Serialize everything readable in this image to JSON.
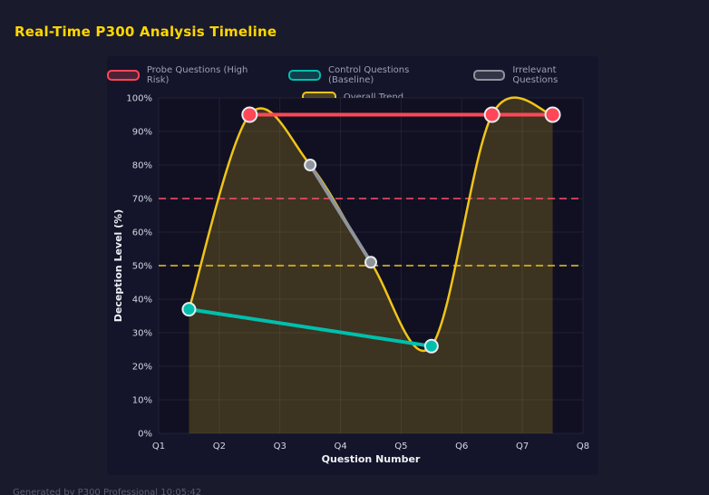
{
  "page": {
    "title": "Real-Time P300 Analysis Timeline",
    "footer": "Generated by P300 Professional  10:05:42"
  },
  "colors": {
    "background": "#1a1a2d",
    "card": "#14142b",
    "plot": "#101022",
    "title": "#ffd700",
    "grid": "rgba(255,255,255,0.07)",
    "axis_text": "#d5d8e0",
    "axis_label": "#f0f0f5",
    "marker_stroke": "#e8ecf1",
    "area_fill": "rgba(240,196,25,0.20)"
  },
  "chart_data": {
    "type": "line",
    "title": "Real-Time P300 Analysis Timeline",
    "xlabel": "Question Number",
    "ylabel": "Deception Level (%)",
    "x_ticks": [
      "Q1",
      "Q2",
      "Q3",
      "Q4",
      "Q5",
      "Q6",
      "Q7",
      "Q8"
    ],
    "x_range": [
      1,
      8
    ],
    "y_ticks": [
      "0%",
      "10%",
      "20%",
      "30%",
      "40%",
      "50%",
      "60%",
      "70%",
      "80%",
      "90%",
      "100%"
    ],
    "ylim": [
      0,
      100
    ],
    "grid": true,
    "legend_position": "top",
    "legend": [
      {
        "label": "Probe Questions (High Risk)",
        "color": "#ff4757"
      },
      {
        "label": "Control Questions (Baseline)",
        "color": "#00bfad"
      },
      {
        "label": "Irrelevant Questions",
        "color": "#8f949c"
      },
      {
        "label": "Overall Trend",
        "color": "#f0c419"
      }
    ],
    "thresholds": [
      {
        "y": 70,
        "color": "#ff4d6d"
      },
      {
        "y": 50,
        "color": "#f0c419"
      }
    ],
    "series": [
      {
        "name": "Overall Trend",
        "color": "#f0c419",
        "smooth": true,
        "area": true,
        "line_w": 2.5,
        "marker_r": 0,
        "points": [
          {
            "x": 1.5,
            "y": 37
          },
          {
            "x": 2.5,
            "y": 95
          },
          {
            "x": 3.5,
            "y": 80
          },
          {
            "x": 4.5,
            "y": 51
          },
          {
            "x": 5.5,
            "y": 26
          },
          {
            "x": 6.5,
            "y": 95
          },
          {
            "x": 7.5,
            "y": 95
          }
        ]
      },
      {
        "name": "Irrelevant Questions",
        "color": "#8f949c",
        "smooth": false,
        "area": false,
        "line_w": 4,
        "marker_r": 6,
        "points": [
          {
            "x": 3.5,
            "y": 80
          },
          {
            "x": 4.5,
            "y": 51
          }
        ]
      },
      {
        "name": "Control Questions (Baseline)",
        "color": "#00bfad",
        "smooth": false,
        "area": false,
        "line_w": 4,
        "marker_r": 7,
        "points": [
          {
            "x": 1.5,
            "y": 37
          },
          {
            "x": 5.5,
            "y": 26
          }
        ]
      },
      {
        "name": "Probe Questions (High Risk)",
        "color": "#ff4757",
        "smooth": false,
        "area": false,
        "line_w": 4,
        "marker_r": 8,
        "points": [
          {
            "x": 2.5,
            "y": 95
          },
          {
            "x": 6.5,
            "y": 95
          },
          {
            "x": 7.5,
            "y": 95
          }
        ]
      }
    ]
  }
}
